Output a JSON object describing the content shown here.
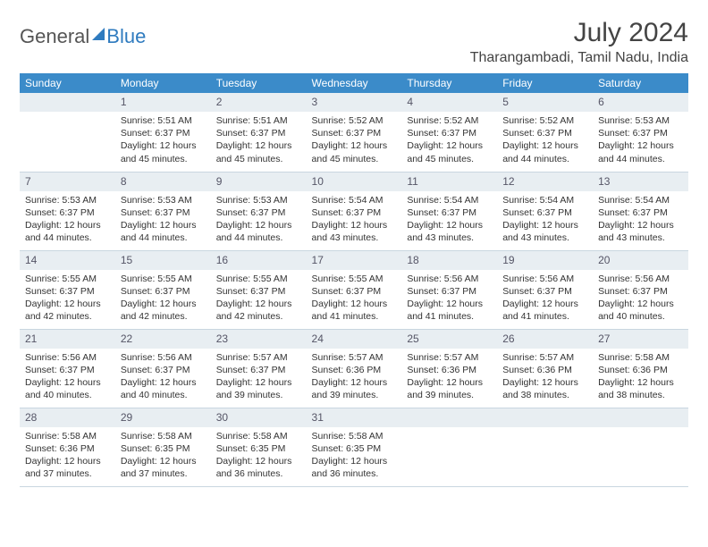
{
  "logo": {
    "part1": "General",
    "part2": "Blue"
  },
  "title": "July 2024",
  "location": "Tharangambadi, Tamil Nadu, India",
  "colors": {
    "header_bg": "#3b8bc9",
    "header_text": "#ffffff",
    "daynum_bg": "#e8eef2",
    "border": "#c9d6e0",
    "logo_blue": "#2f7bbf",
    "body_text": "#333333"
  },
  "weekdays": [
    "Sunday",
    "Monday",
    "Tuesday",
    "Wednesday",
    "Thursday",
    "Friday",
    "Saturday"
  ],
  "weeks": [
    [
      null,
      {
        "n": "1",
        "sr": "5:51 AM",
        "ss": "6:37 PM",
        "dl": "12 hours and 45 minutes."
      },
      {
        "n": "2",
        "sr": "5:51 AM",
        "ss": "6:37 PM",
        "dl": "12 hours and 45 minutes."
      },
      {
        "n": "3",
        "sr": "5:52 AM",
        "ss": "6:37 PM",
        "dl": "12 hours and 45 minutes."
      },
      {
        "n": "4",
        "sr": "5:52 AM",
        "ss": "6:37 PM",
        "dl": "12 hours and 45 minutes."
      },
      {
        "n": "5",
        "sr": "5:52 AM",
        "ss": "6:37 PM",
        "dl": "12 hours and 44 minutes."
      },
      {
        "n": "6",
        "sr": "5:53 AM",
        "ss": "6:37 PM",
        "dl": "12 hours and 44 minutes."
      }
    ],
    [
      {
        "n": "7",
        "sr": "5:53 AM",
        "ss": "6:37 PM",
        "dl": "12 hours and 44 minutes."
      },
      {
        "n": "8",
        "sr": "5:53 AM",
        "ss": "6:37 PM",
        "dl": "12 hours and 44 minutes."
      },
      {
        "n": "9",
        "sr": "5:53 AM",
        "ss": "6:37 PM",
        "dl": "12 hours and 44 minutes."
      },
      {
        "n": "10",
        "sr": "5:54 AM",
        "ss": "6:37 PM",
        "dl": "12 hours and 43 minutes."
      },
      {
        "n": "11",
        "sr": "5:54 AM",
        "ss": "6:37 PM",
        "dl": "12 hours and 43 minutes."
      },
      {
        "n": "12",
        "sr": "5:54 AM",
        "ss": "6:37 PM",
        "dl": "12 hours and 43 minutes."
      },
      {
        "n": "13",
        "sr": "5:54 AM",
        "ss": "6:37 PM",
        "dl": "12 hours and 43 minutes."
      }
    ],
    [
      {
        "n": "14",
        "sr": "5:55 AM",
        "ss": "6:37 PM",
        "dl": "12 hours and 42 minutes."
      },
      {
        "n": "15",
        "sr": "5:55 AM",
        "ss": "6:37 PM",
        "dl": "12 hours and 42 minutes."
      },
      {
        "n": "16",
        "sr": "5:55 AM",
        "ss": "6:37 PM",
        "dl": "12 hours and 42 minutes."
      },
      {
        "n": "17",
        "sr": "5:55 AM",
        "ss": "6:37 PM",
        "dl": "12 hours and 41 minutes."
      },
      {
        "n": "18",
        "sr": "5:56 AM",
        "ss": "6:37 PM",
        "dl": "12 hours and 41 minutes."
      },
      {
        "n": "19",
        "sr": "5:56 AM",
        "ss": "6:37 PM",
        "dl": "12 hours and 41 minutes."
      },
      {
        "n": "20",
        "sr": "5:56 AM",
        "ss": "6:37 PM",
        "dl": "12 hours and 40 minutes."
      }
    ],
    [
      {
        "n": "21",
        "sr": "5:56 AM",
        "ss": "6:37 PM",
        "dl": "12 hours and 40 minutes."
      },
      {
        "n": "22",
        "sr": "5:56 AM",
        "ss": "6:37 PM",
        "dl": "12 hours and 40 minutes."
      },
      {
        "n": "23",
        "sr": "5:57 AM",
        "ss": "6:37 PM",
        "dl": "12 hours and 39 minutes."
      },
      {
        "n": "24",
        "sr": "5:57 AM",
        "ss": "6:36 PM",
        "dl": "12 hours and 39 minutes."
      },
      {
        "n": "25",
        "sr": "5:57 AM",
        "ss": "6:36 PM",
        "dl": "12 hours and 39 minutes."
      },
      {
        "n": "26",
        "sr": "5:57 AM",
        "ss": "6:36 PM",
        "dl": "12 hours and 38 minutes."
      },
      {
        "n": "27",
        "sr": "5:58 AM",
        "ss": "6:36 PM",
        "dl": "12 hours and 38 minutes."
      }
    ],
    [
      {
        "n": "28",
        "sr": "5:58 AM",
        "ss": "6:36 PM",
        "dl": "12 hours and 37 minutes."
      },
      {
        "n": "29",
        "sr": "5:58 AM",
        "ss": "6:35 PM",
        "dl": "12 hours and 37 minutes."
      },
      {
        "n": "30",
        "sr": "5:58 AM",
        "ss": "6:35 PM",
        "dl": "12 hours and 36 minutes."
      },
      {
        "n": "31",
        "sr": "5:58 AM",
        "ss": "6:35 PM",
        "dl": "12 hours and 36 minutes."
      },
      null,
      null,
      null
    ]
  ],
  "labels": {
    "sunrise": "Sunrise:",
    "sunset": "Sunset:",
    "daylight": "Daylight:"
  }
}
